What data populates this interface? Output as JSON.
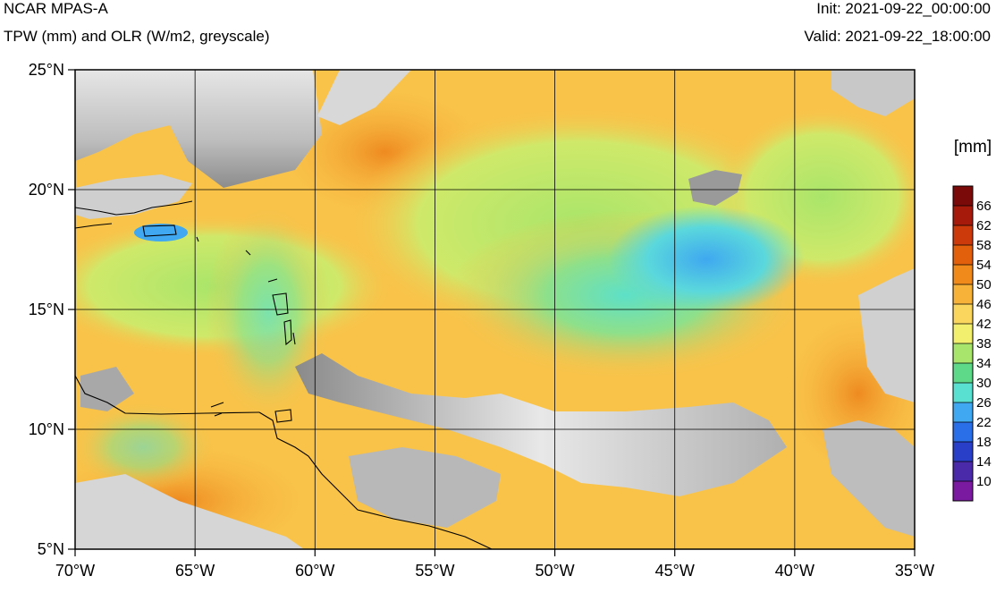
{
  "header": {
    "title": "NCAR MPAS-A",
    "subtitle": "TPW (mm) and OLR (W/m2, greyscale)",
    "init": "Init: 2021-09-22_00:00:00",
    "valid": "Valid: 2021-09-22_18:00:00"
  },
  "map": {
    "lon_range": [
      -70,
      -35
    ],
    "lat_range": [
      5,
      25
    ],
    "lon_ticks": [
      {
        "value": -70,
        "label": "70°W"
      },
      {
        "value": -65,
        "label": "65°W"
      },
      {
        "value": -60,
        "label": "60°W"
      },
      {
        "value": -55,
        "label": "55°W"
      },
      {
        "value": -50,
        "label": "50°W"
      },
      {
        "value": -45,
        "label": "45°W"
      },
      {
        "value": -40,
        "label": "40°W"
      },
      {
        "value": -35,
        "label": "35°W"
      }
    ],
    "lat_ticks": [
      {
        "value": 25,
        "label": "25°N"
      },
      {
        "value": 20,
        "label": "20°N"
      },
      {
        "value": 15,
        "label": "15°N"
      },
      {
        "value": 10,
        "label": "10°N"
      },
      {
        "value": 5,
        "label": "5°N"
      }
    ],
    "gridlines": true,
    "ocean_background": "#f9c349"
  },
  "colorbar": {
    "unit": "[mm]",
    "levels": [
      "66",
      "62",
      "58",
      "54",
      "50",
      "46",
      "42",
      "38",
      "34",
      "30",
      "26",
      "22",
      "18",
      "14",
      "10"
    ],
    "colors": [
      "#7a0a0a",
      "#a51a0a",
      "#cc3a0c",
      "#e2600c",
      "#f08a1a",
      "#f7b23a",
      "#fad65e",
      "#f2ef6e",
      "#a7e56c",
      "#5ed98a",
      "#5ae0d0",
      "#3fa8f0",
      "#2a6ee8",
      "#2a3fc8",
      "#4a2aa8",
      "#7a1aa0"
    ]
  }
}
